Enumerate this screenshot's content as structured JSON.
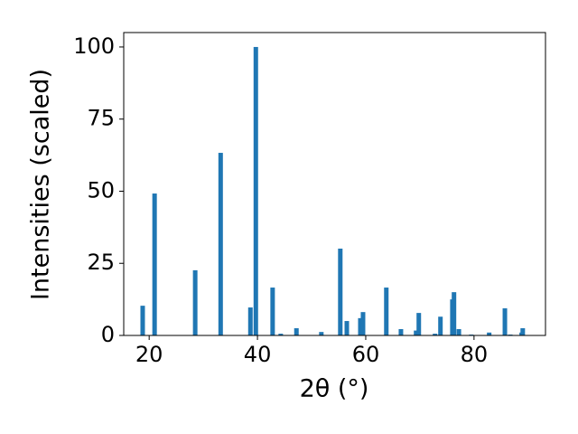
{
  "chart_data": {
    "type": "bar",
    "x_label": "2θ (°)",
    "y_label": "Intensities (scaled)",
    "x": [
      18.8,
      21.0,
      28.5,
      33.2,
      38.7,
      39.7,
      42.8,
      44.3,
      47.2,
      51.8,
      55.3,
      56.5,
      59.0,
      59.5,
      63.8,
      66.5,
      69.3,
      69.8,
      72.8,
      73.8,
      76.0,
      76.3,
      77.2,
      79.5,
      82.8,
      85.7,
      86.7,
      88.8,
      89.0
    ],
    "values": [
      10.3,
      49.2,
      22.6,
      63.3,
      9.7,
      100,
      16.6,
      0.6,
      2.5,
      1.2,
      30.1,
      5.0,
      6.0,
      8.1,
      16.6,
      2.2,
      1.7,
      7.8,
      0.6,
      6.5,
      12.5,
      15.0,
      2.2,
      0.3,
      1.0,
      9.4,
      0.3,
      1.0,
      2.5
    ],
    "color": "#1f77b4",
    "xlim": [
      15.3,
      93.2
    ],
    "xticks": [
      20,
      40,
      60,
      80
    ],
    "ylim": [
      0,
      105
    ],
    "yticks": [
      0,
      25,
      50,
      75,
      100
    ],
    "grid": false
  }
}
